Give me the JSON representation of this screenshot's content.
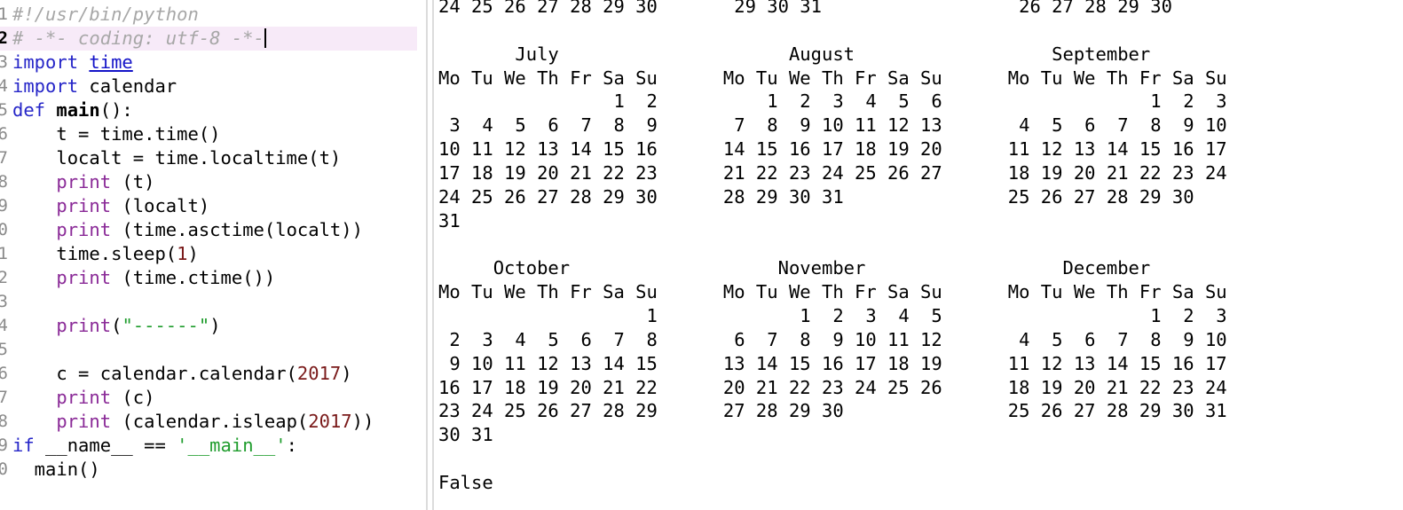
{
  "editor": {
    "current_line": 2,
    "lines": [
      {
        "num": "1",
        "tokens": [
          {
            "t": "#!/usr/bin/python",
            "c": "cm"
          }
        ]
      },
      {
        "num": "2",
        "tokens": [
          {
            "t": "# -*- coding: utf-8 -*-",
            "c": "cm"
          }
        ],
        "caret": true
      },
      {
        "num": "3",
        "tokens": [
          {
            "t": "import",
            "c": "kw"
          },
          {
            "t": " "
          },
          {
            "t": "time",
            "c": "mod"
          }
        ]
      },
      {
        "num": "4",
        "tokens": [
          {
            "t": "import",
            "c": "kw"
          },
          {
            "t": " calendar"
          }
        ]
      },
      {
        "num": "5",
        "tokens": [
          {
            "t": "def",
            "c": "kw"
          },
          {
            "t": " "
          },
          {
            "t": "main",
            "c": "fn"
          },
          {
            "t": "():"
          }
        ]
      },
      {
        "num": "6",
        "tokens": [
          {
            "t": "    t = time.time()"
          }
        ]
      },
      {
        "num": "7",
        "tokens": [
          {
            "t": "    localt = time.localtime(t)"
          }
        ]
      },
      {
        "num": "8",
        "tokens": [
          {
            "t": "    "
          },
          {
            "t": "print",
            "c": "bi"
          },
          {
            "t": " (t)"
          }
        ]
      },
      {
        "num": "9",
        "tokens": [
          {
            "t": "    "
          },
          {
            "t": "print",
            "c": "bi"
          },
          {
            "t": " (localt)"
          }
        ]
      },
      {
        "num": "0",
        "tokens": [
          {
            "t": "    "
          },
          {
            "t": "print",
            "c": "bi"
          },
          {
            "t": " (time.asctime(localt))"
          }
        ]
      },
      {
        "num": "1",
        "tokens": [
          {
            "t": "    time.sleep("
          },
          {
            "t": "1",
            "c": "num"
          },
          {
            "t": ")"
          }
        ]
      },
      {
        "num": "2",
        "tokens": [
          {
            "t": "    "
          },
          {
            "t": "print",
            "c": "bi"
          },
          {
            "t": " (time.ctime())"
          }
        ]
      },
      {
        "num": "3",
        "tokens": []
      },
      {
        "num": "4",
        "tokens": [
          {
            "t": "    "
          },
          {
            "t": "print",
            "c": "bi"
          },
          {
            "t": "("
          },
          {
            "t": "\"------\"",
            "c": "str"
          },
          {
            "t": ")"
          }
        ]
      },
      {
        "num": "5",
        "tokens": []
      },
      {
        "num": "6",
        "tokens": [
          {
            "t": "    c = calendar.calendar("
          },
          {
            "t": "2017",
            "c": "num"
          },
          {
            "t": ")"
          }
        ]
      },
      {
        "num": "7",
        "tokens": [
          {
            "t": "    "
          },
          {
            "t": "print",
            "c": "bi"
          },
          {
            "t": " (c)"
          }
        ]
      },
      {
        "num": "8",
        "tokens": [
          {
            "t": "    "
          },
          {
            "t": "print",
            "c": "bi"
          },
          {
            "t": " (calendar.isleap("
          },
          {
            "t": "2017",
            "c": "num"
          },
          {
            "t": "))"
          }
        ]
      },
      {
        "num": "9",
        "tokens": [
          {
            "t": "if",
            "c": "kw"
          },
          {
            "t": " __name__ == "
          },
          {
            "t": "'__main__'",
            "c": "str"
          },
          {
            "t": ":"
          }
        ]
      },
      {
        "num": "0",
        "tokens": [
          {
            "t": "  main()"
          }
        ]
      }
    ]
  },
  "console": {
    "lines": [
      "24 25 26 27 28 29 30       29 30 31                  26 27 28 29 30",
      "",
      "       July                     August                  September",
      "Mo Tu We Th Fr Sa Su      Mo Tu We Th Fr Sa Su      Mo Tu We Th Fr Sa Su",
      "                1  2          1  2  3  4  5  6                   1  2  3",
      " 3  4  5  6  7  8  9       7  8  9 10 11 12 13       4  5  6  7  8  9 10",
      "10 11 12 13 14 15 16      14 15 16 17 18 19 20      11 12 13 14 15 16 17",
      "17 18 19 20 21 22 23      21 22 23 24 25 26 27      18 19 20 21 22 23 24",
      "24 25 26 27 28 29 30      28 29 30 31               25 26 27 28 29 30",
      "31",
      "",
      "     October                   November                  December",
      "Mo Tu We Th Fr Sa Su      Mo Tu We Th Fr Sa Su      Mo Tu We Th Fr Sa Su",
      "                   1             1  2  3  4  5                   1  2  3",
      " 2  3  4  5  6  7  8       6  7  8  9 10 11 12       4  5  6  7  8  9 10",
      " 9 10 11 12 13 14 15      13 14 15 16 17 18 19      11 12 13 14 15 16 17",
      "16 17 18 19 20 21 22      20 21 22 23 24 25 26      18 19 20 21 22 23 24",
      "23 24 25 26 27 28 29      27 28 29 30               25 26 27 28 29 30 31",
      "30 31",
      "",
      "False"
    ]
  }
}
